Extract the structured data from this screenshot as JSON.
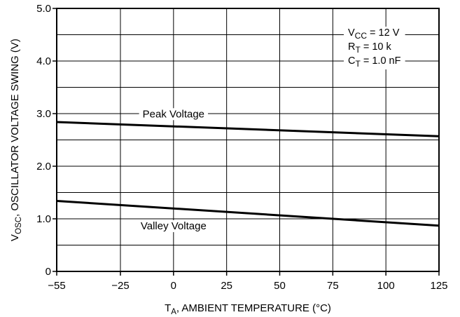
{
  "chart_data": {
    "type": "line",
    "xlabel": {
      "main": "T",
      "sub": "A",
      "rest": ", AMBIENT TEMPERATURE (°C)"
    },
    "ylabel": {
      "main": "V",
      "sub": "OSC",
      "rest": ", OSCILLATOR VOLTAGE SWING (V)"
    },
    "xlim": [
      -55,
      125
    ],
    "ylim": [
      0,
      5.0
    ],
    "x_ticks": [
      -55,
      -25,
      0,
      25,
      50,
      75,
      100,
      125
    ],
    "x_tick_labels": [
      "−55",
      "−25",
      "0",
      "25",
      "50",
      "75",
      "100",
      "125"
    ],
    "y_labeled_ticks": [
      0,
      1.0,
      2.0,
      3.0,
      4.0,
      5.0
    ],
    "y_tick_labels": [
      "0",
      "1.0",
      "2.0",
      "3.0",
      "4.0",
      "5.0"
    ],
    "grid": true,
    "series": [
      {
        "name": "Peak Voltage",
        "x": [
          -55,
          125
        ],
        "y": [
          2.84,
          2.57
        ]
      },
      {
        "name": "Valley Voltage",
        "x": [
          -55,
          125
        ],
        "y": [
          1.34,
          0.87
        ]
      }
    ],
    "conditions": [
      {
        "main": "V",
        "sub": "CC",
        "rest": " = 12 V"
      },
      {
        "main": "R",
        "sub": "T",
        "rest": " = 10 k"
      },
      {
        "main": "C",
        "sub": "T",
        "rest": " = 1.0  nF"
      }
    ]
  }
}
